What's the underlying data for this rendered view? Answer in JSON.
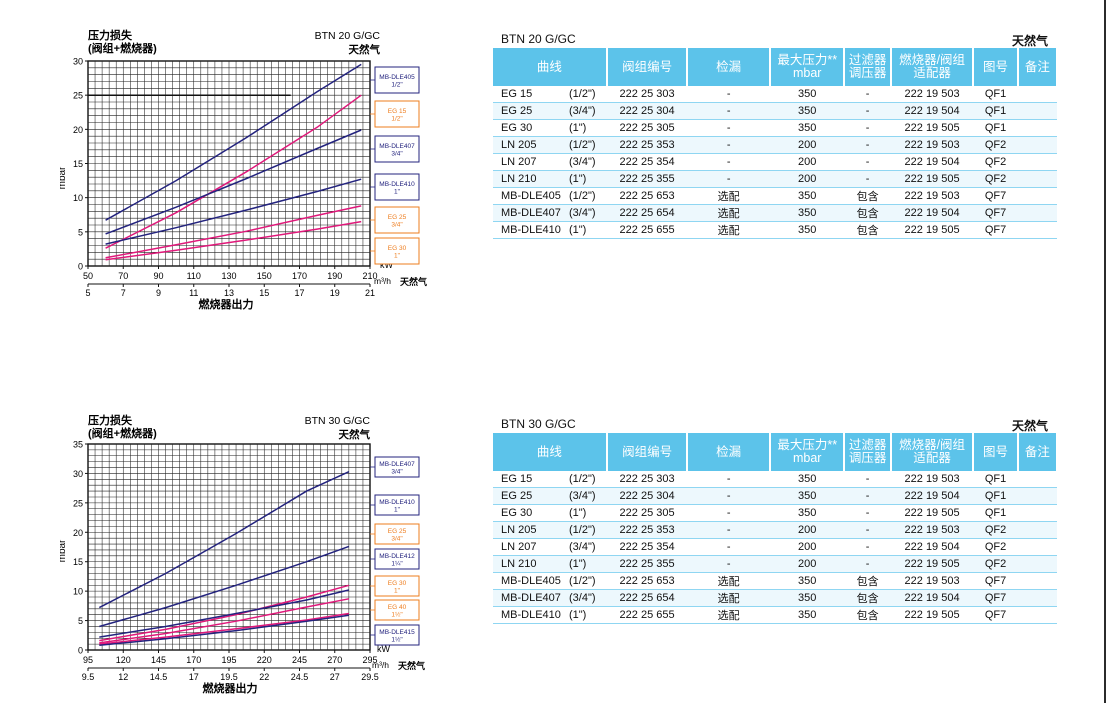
{
  "colors": {
    "navy": "#23237e",
    "pink": "#e0187a",
    "orange": "#ee7d1e",
    "header": "#5cc3ea",
    "grid": "#111111"
  },
  "charts": [
    {
      "model": "BTN 20 G/GC",
      "gas": "天然气",
      "title_line1": "压力损失",
      "title_line2": "(阀组+燃烧器)",
      "ylabel": "mbar",
      "xlabel": "燃烧器出力",
      "unit_kw": "kW",
      "unit_m3h": "m³/h",
      "unit_gas": "天然气",
      "kw_ticks": [
        "50",
        "70",
        "90",
        "110",
        "130",
        "150",
        "170",
        "190",
        "210"
      ],
      "m3h_ticks": [
        "5",
        "7",
        "9",
        "11",
        "13",
        "15",
        "17",
        "19",
        "21"
      ],
      "y_ticks": [
        "0",
        "5",
        "10",
        "15",
        "20",
        "25",
        "30"
      ]
    },
    {
      "model": "BTN 30 G/GC",
      "gas": "天然气",
      "title_line1": "压力损失",
      "title_line2": "(阀组+燃烧器)",
      "ylabel": "mbar",
      "xlabel": "燃烧器出力",
      "unit_kw": "kW",
      "unit_m3h": "m³/h",
      "unit_gas": "天然气",
      "kw_ticks": [
        "95",
        "120",
        "145",
        "170",
        "195",
        "220",
        "245",
        "270",
        "295"
      ],
      "m3h_ticks": [
        "9.5",
        "12",
        "14.5",
        "17",
        "19.5",
        "22",
        "24.5",
        "27",
        "29.5"
      ],
      "y_ticks": [
        "0",
        "5",
        "10",
        "15",
        "20",
        "25",
        "30",
        "35"
      ]
    }
  ],
  "chart_data": [
    {
      "type": "line",
      "title": "BTN 20 G/GC",
      "xlabel": "燃烧器出力 kW",
      "ylabel": "mbar",
      "xlim": [
        50,
        210
      ],
      "ylim": [
        0,
        30
      ],
      "grid": true,
      "legend_position": "right",
      "series": [
        {
          "name": "MB-DLE405 1/2\"",
          "color": "navy",
          "x": [
            60,
            100,
            140,
            180,
            205
          ],
          "y": [
            6.7,
            12.5,
            18.8,
            25.5,
            29.5
          ]
        },
        {
          "name": "EG 15 1/2\"",
          "color": "pink",
          "x": [
            60,
            100,
            140,
            180,
            205
          ],
          "y": [
            2.6,
            7.8,
            13.8,
            20.3,
            25.0
          ]
        },
        {
          "name": "MB-DLE407 3/4\"",
          "color": "navy",
          "x": [
            60,
            100,
            140,
            180,
            205
          ],
          "y": [
            4.7,
            8.6,
            12.8,
            17.2,
            19.9
          ]
        },
        {
          "name": "MB-DLE410 1\"",
          "color": "navy",
          "x": [
            60,
            100,
            140,
            180,
            205
          ],
          "y": [
            3.2,
            5.6,
            8.2,
            10.9,
            12.7
          ]
        },
        {
          "name": "EG 25 3/4\"",
          "color": "pink",
          "x": [
            60,
            100,
            140,
            180,
            205
          ],
          "y": [
            1.2,
            3.1,
            5.1,
            7.4,
            8.8
          ]
        },
        {
          "name": "EG 30 1\"",
          "color": "pink",
          "x": [
            60,
            100,
            140,
            180,
            205
          ],
          "y": [
            0.9,
            2.3,
            3.8,
            5.4,
            6.5
          ]
        },
        {
          "name": "",
          "color": "black",
          "x": [
            50,
            165
          ],
          "y": [
            25,
            25
          ]
        }
      ]
    },
    {
      "type": "line",
      "title": "BTN 30 G/GC",
      "xlabel": "燃烧器出力 kW",
      "ylabel": "mbar",
      "xlim": [
        95,
        295
      ],
      "ylim": [
        0,
        35
      ],
      "grid": true,
      "legend_position": "right",
      "series": [
        {
          "name": "MB-DLE407 3/4\"",
          "color": "navy",
          "x": [
            103,
            150,
            200,
            250,
            280
          ],
          "y": [
            7.2,
            13.0,
            19.8,
            27.0,
            30.3
          ]
        },
        {
          "name": "MB-DLE410 1\"",
          "color": "navy",
          "x": [
            103,
            150,
            200,
            250,
            280
          ],
          "y": [
            4.0,
            7.2,
            11.0,
            15.0,
            17.6
          ]
        },
        {
          "name": "EG 25 3/4\"",
          "color": "pink",
          "x": [
            103,
            150,
            200,
            250,
            280
          ],
          "y": [
            1.6,
            3.5,
            6.0,
            9.0,
            11.0
          ]
        },
        {
          "name": "MB-DLE412 1 1/4\"",
          "color": "navy",
          "x": [
            103,
            150,
            200,
            250,
            280
          ],
          "y": [
            2.2,
            4.0,
            6.2,
            8.5,
            10.2
          ]
        },
        {
          "name": "EG 30 1\"",
          "color": "pink",
          "x": [
            103,
            150,
            200,
            250,
            280
          ],
          "y": [
            1.2,
            2.8,
            4.9,
            7.3,
            8.7
          ]
        },
        {
          "name": "EG 40 1 1/2\"",
          "color": "pink",
          "x": [
            103,
            150,
            200,
            250,
            280
          ],
          "y": [
            1.0,
            2.2,
            3.6,
            5.1,
            6.2
          ]
        },
        {
          "name": "MB-DLE415 1 1/2\"",
          "color": "navy",
          "x": [
            103,
            150,
            200,
            250,
            280
          ],
          "y": [
            0.8,
            1.9,
            3.3,
            4.9,
            5.9
          ]
        }
      ]
    }
  ],
  "legend_boxes": [
    [
      {
        "l1": "MB-DLE405",
        "l2": "1/2\"",
        "color": "navy"
      },
      {
        "l1": "EG 15",
        "l2": "1/2\"",
        "color": "orange"
      },
      {
        "l1": "MB-DLE407",
        "l2": "3/4\"",
        "color": "navy"
      },
      {
        "l1": "MB-DLE410",
        "l2": "1\"",
        "color": "navy"
      },
      {
        "l1": "EG 25",
        "l2": "3/4\"",
        "color": "orange"
      },
      {
        "l1": "EG 30",
        "l2": "1\"",
        "color": "orange"
      }
    ],
    [
      {
        "l1": "MB-DLE407",
        "l2": "3/4\"",
        "color": "navy"
      },
      {
        "l1": "MB-DLE410",
        "l2": "1\"",
        "color": "navy"
      },
      {
        "l1": "EG 25",
        "l2": "3/4\"",
        "color": "orange"
      },
      {
        "l1": "MB-DLE412",
        "l2": "1¼\"",
        "color": "navy"
      },
      {
        "l1": "EG 30",
        "l2": "1\"",
        "color": "orange"
      },
      {
        "l1": "EG 40",
        "l2": "1½\"",
        "color": "orange"
      },
      {
        "l1": "MB-DLE415",
        "l2": "1½\"",
        "color": "navy"
      }
    ]
  ],
  "tables": [
    {
      "model": "BTN 20 G/GC",
      "gas": "天然气",
      "headers": [
        "曲线",
        "阀组编号",
        "检漏",
        "最大压力** mbar",
        "过滤器 调压器",
        "燃烧器/阀组 适配器",
        "图号",
        "备注"
      ],
      "rows": [
        [
          "EG 15",
          "(1/2\")",
          "222 25 303",
          "-",
          "350",
          "-",
          "222 19 503",
          "QF1",
          ""
        ],
        [
          "EG 25",
          "(3/4\")",
          "222 25 304",
          "-",
          "350",
          "-",
          "222 19 504",
          "QF1",
          ""
        ],
        [
          "EG 30",
          "(1\")",
          "222 25 305",
          "-",
          "350",
          "-",
          "222 19 505",
          "QF1",
          ""
        ],
        [
          "LN  205",
          "(1/2\")",
          "222 25 353",
          "-",
          "200",
          "-",
          "222 19 503",
          "QF2",
          ""
        ],
        [
          "LN  207",
          "(3/4\")",
          "222 25 354",
          "-",
          "200",
          "-",
          "222 19 504",
          "QF2",
          ""
        ],
        [
          "LN  210",
          "(1\")",
          "222 25 355",
          "-",
          "200",
          "-",
          "222 19 505",
          "QF2",
          ""
        ],
        [
          "MB-DLE405",
          "(1/2\")",
          "222 25 653",
          "选配",
          "350",
          "包含",
          "222 19 503",
          "QF7",
          ""
        ],
        [
          "MB-DLE407",
          "(3/4\")",
          "222 25 654",
          "选配",
          "350",
          "包含",
          "222 19 504",
          "QF7",
          ""
        ],
        [
          "MB-DLE410",
          "(1\")",
          "222 25 655",
          "选配",
          "350",
          "包含",
          "222 19 505",
          "QF7",
          ""
        ]
      ]
    },
    {
      "model": "BTN 30 G/GC",
      "gas": "天然气",
      "headers": [
        "曲线",
        "阀组编号",
        "检漏",
        "最大压力** mbar",
        "过滤器 调压器",
        "燃烧器/阀组 适配器",
        "图号",
        "备注"
      ],
      "rows": [
        [
          "EG 15",
          "(1/2\")",
          "222 25 303",
          "-",
          "350",
          "-",
          "222 19 503",
          "QF1",
          ""
        ],
        [
          "EG 25",
          "(3/4\")",
          "222 25 304",
          "-",
          "350",
          "-",
          "222 19 504",
          "QF1",
          ""
        ],
        [
          "EG 30",
          "(1\")",
          "222 25 305",
          "-",
          "350",
          "-",
          "222 19 505",
          "QF1",
          ""
        ],
        [
          "LN  205",
          "(1/2\")",
          "222 25 353",
          "-",
          "200",
          "-",
          "222 19 503",
          "QF2",
          ""
        ],
        [
          "LN  207",
          "(3/4\")",
          "222 25 354",
          "-",
          "200",
          "-",
          "222 19 504",
          "QF2",
          ""
        ],
        [
          "LN  210",
          "(1\")",
          "222 25 355",
          "-",
          "200",
          "-",
          "222 19 505",
          "QF2",
          ""
        ],
        [
          "MB-DLE405",
          "(1/2\")",
          "222 25 653",
          "选配",
          "350",
          "包含",
          "222 19 503",
          "QF7",
          ""
        ],
        [
          "MB-DLE407",
          "(3/4\")",
          "222 25 654",
          "选配",
          "350",
          "包含",
          "222 19 504",
          "QF7",
          ""
        ],
        [
          "MB-DLE410",
          "(1\")",
          "222 25 655",
          "选配",
          "350",
          "包含",
          "222 19 505",
          "QF7",
          ""
        ]
      ]
    }
  ]
}
